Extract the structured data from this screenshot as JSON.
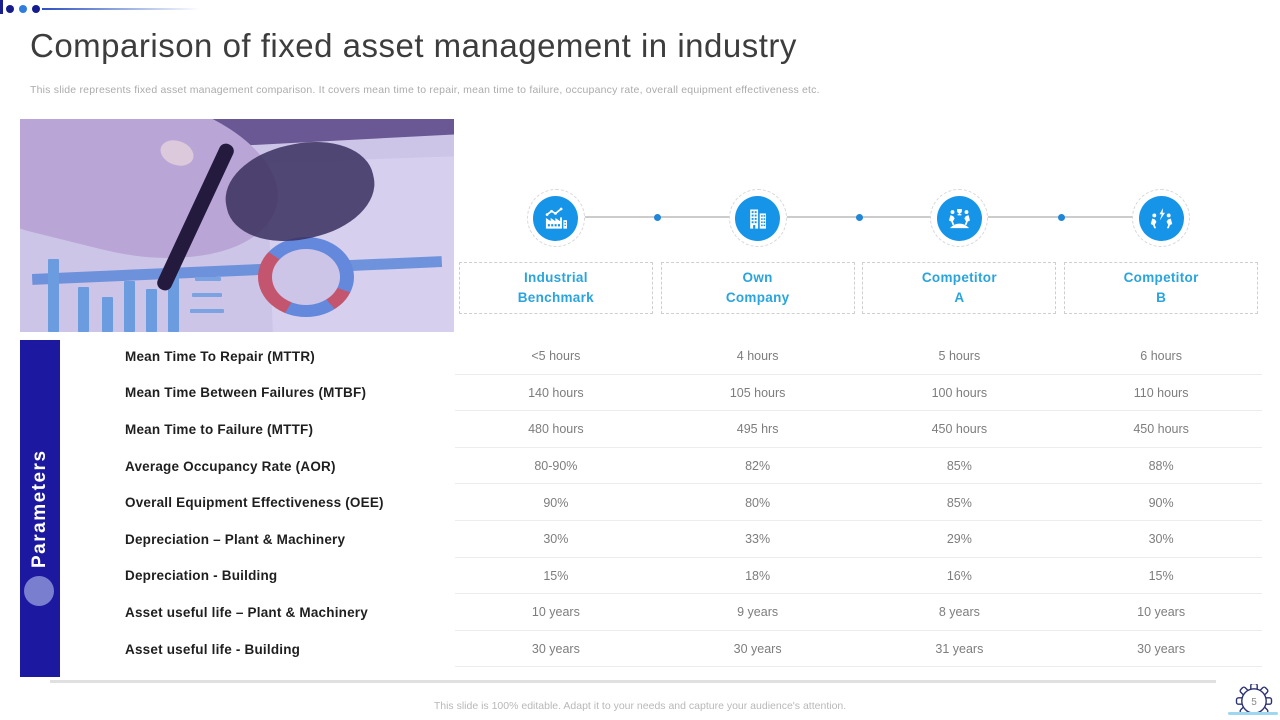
{
  "slide": {
    "title": "Comparison of fixed asset management in industry",
    "subtitle": "This slide represents fixed asset management comparison. It covers mean time to repair, mean time to failure, occupancy rate, overall equipment effectiveness etc.",
    "footer": "This slide is 100% editable.  Adapt it to your needs and capture your audience's attention.",
    "page_number": "5",
    "side_banner": "Parameters"
  },
  "columns": [
    {
      "id": "industrial-benchmark",
      "line1": "Industrial",
      "line2": "Benchmark",
      "icon": "factory-trend-icon"
    },
    {
      "id": "own-company",
      "line1": "Own",
      "line2": "Company",
      "icon": "office-buildings-icon"
    },
    {
      "id": "competitor-a",
      "line1": "Competitor",
      "line2": "A",
      "icon": "runners-trophy-icon"
    },
    {
      "id": "competitor-b",
      "line1": "Competitor",
      "line2": "B",
      "icon": "runners-bolt-icon"
    }
  ],
  "parameters": [
    {
      "label": "Mean Time To Repair (MTTR)",
      "values": [
        "<5 hours",
        "4 hours",
        "5 hours",
        "6 hours"
      ]
    },
    {
      "label": "Mean Time Between Failures (MTBF)",
      "values": [
        "140 hours",
        "105 hours",
        "100 hours",
        "110 hours"
      ]
    },
    {
      "label": "Mean Time to Failure (MTTF)",
      "values": [
        "480 hours",
        "495 hrs",
        "450 hours",
        "450 hours"
      ]
    },
    {
      "label": "Average Occupancy Rate (AOR)",
      "values": [
        "80-90%",
        "82%",
        "85%",
        "88%"
      ]
    },
    {
      "label": "Overall Equipment Effectiveness (OEE)",
      "values": [
        "90%",
        "80%",
        "85%",
        "90%"
      ]
    },
    {
      "label": "Depreciation – Plant & Machinery",
      "values": [
        "30%",
        "33%",
        "29%",
        "30%"
      ]
    },
    {
      "label": "Depreciation - Building",
      "values": [
        "15%",
        "18%",
        "16%",
        "15%"
      ]
    },
    {
      "label": "Asset useful life – Plant & Machinery",
      "values": [
        "10 years",
        "9 years",
        "8 years",
        "10 years"
      ]
    },
    {
      "label": "Asset useful life - Building",
      "values": [
        "30 years",
        "30 years",
        "31 years",
        "30 years"
      ]
    }
  ],
  "colors": {
    "accent_blue": "#1695e8",
    "label_blue": "#2aa4dd",
    "banner_navy": "#1c19a0",
    "title_gray": "#3d3d3d",
    "value_gray": "#7d7d7d"
  }
}
